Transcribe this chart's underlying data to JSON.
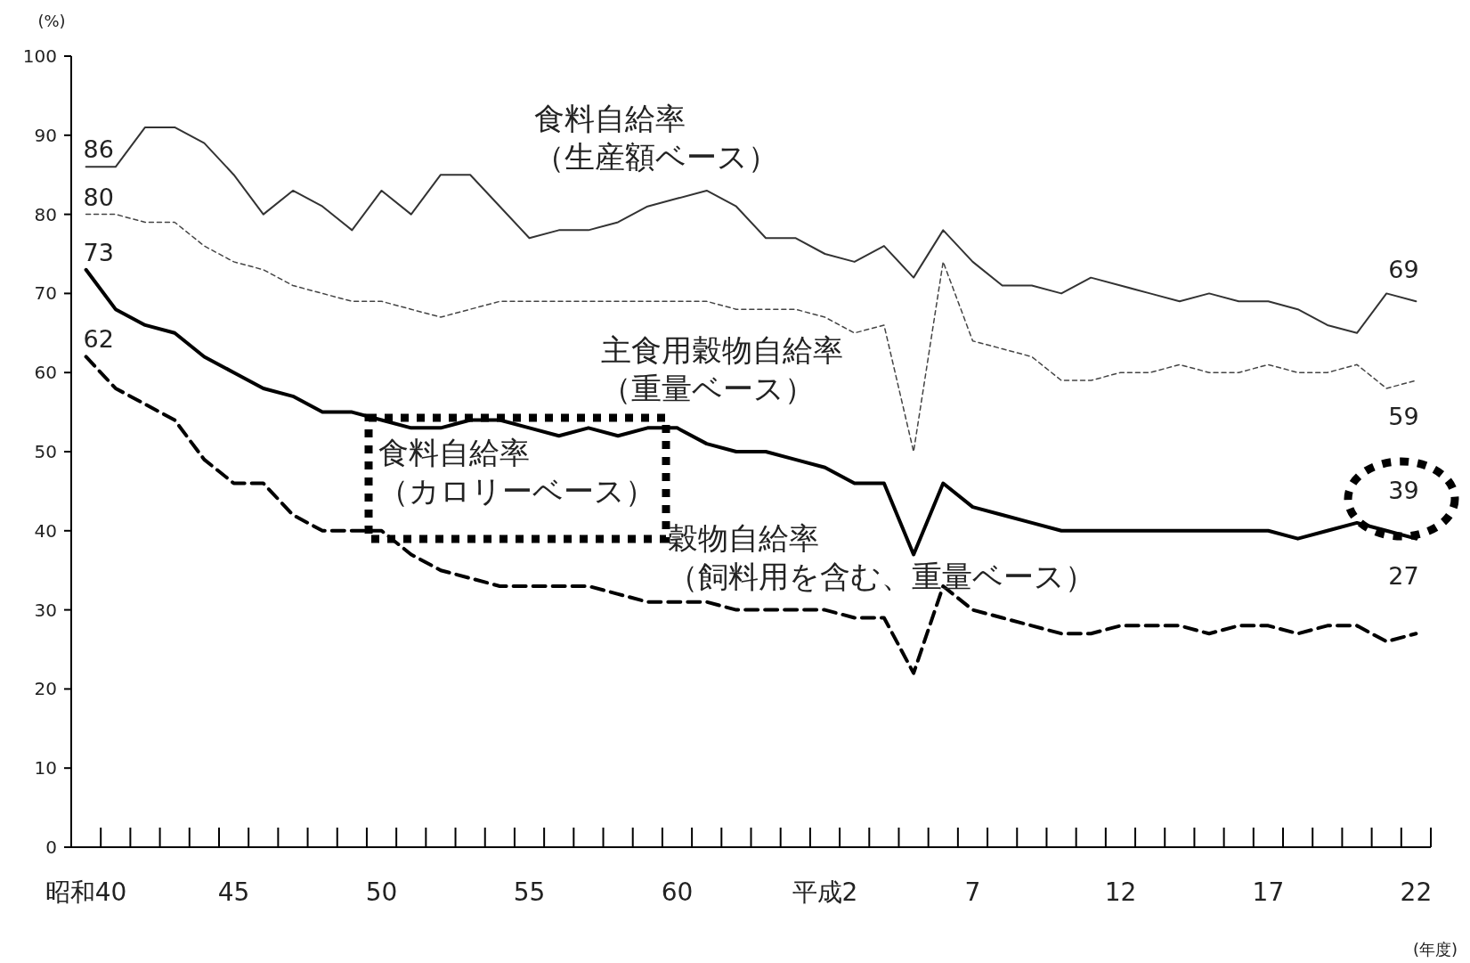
{
  "chart_data": {
    "type": "line",
    "ylabel": "(%)",
    "xlabel": "(年度)",
    "categories": [
      "昭和40",
      null,
      null,
      null,
      null,
      "45",
      null,
      null,
      null,
      null,
      "50",
      null,
      null,
      null,
      null,
      "55",
      null,
      null,
      null,
      null,
      "60",
      null,
      null,
      null,
      null,
      "平成2",
      null,
      null,
      null,
      null,
      "7",
      null,
      null,
      null,
      null,
      "12",
      null,
      null,
      null,
      null,
      "17",
      null,
      null,
      null,
      null,
      "22"
    ],
    "ylim": [
      0,
      100
    ],
    "yticks": [
      0,
      10,
      20,
      30,
      40,
      50,
      60,
      70,
      80,
      90,
      100
    ],
    "grid": false,
    "legend": false,
    "marker": "none",
    "series": [
      {
        "name": "食料自給率（生産額ベース）",
        "color": "#333333",
        "line_style": "solid",
        "values": [
          86,
          86,
          91,
          91,
          89,
          85,
          80,
          83,
          81,
          78,
          83,
          80,
          85,
          85,
          81,
          77,
          78,
          78,
          79,
          81,
          82,
          83,
          81,
          77,
          77,
          75,
          74,
          76,
          72,
          78,
          74,
          71,
          71,
          70,
          72,
          71,
          70,
          69,
          70,
          69,
          69,
          68,
          66,
          65,
          70,
          69
        ],
        "value_labels": [
          "86",
          null,
          null,
          null,
          null,
          null,
          null,
          null,
          null,
          null,
          null,
          null,
          null,
          null,
          null,
          null,
          null,
          null,
          null,
          null,
          null,
          null,
          null,
          null,
          null,
          null,
          null,
          null,
          null,
          null,
          null,
          null,
          null,
          null,
          null,
          null,
          null,
          null,
          null,
          null,
          null,
          null,
          null,
          null,
          null,
          "69"
        ]
      },
      {
        "name": "主食用穀物自給率（重量ベース）",
        "color": "#444444",
        "line_style": "dashed",
        "values": [
          80,
          80,
          79,
          79,
          76,
          74,
          73,
          71,
          70,
          69,
          69,
          68,
          67,
          68,
          69,
          69,
          69,
          69,
          69,
          69,
          69,
          69,
          68,
          68,
          68,
          67,
          65,
          66,
          50,
          74,
          64,
          63,
          62,
          59,
          59,
          60,
          60,
          61,
          60,
          60,
          61,
          60,
          60,
          61,
          58,
          59
        ],
        "value_labels": [
          "80",
          null,
          null,
          null,
          null,
          null,
          null,
          null,
          null,
          null,
          null,
          null,
          null,
          null,
          null,
          null,
          null,
          null,
          null,
          null,
          null,
          null,
          null,
          null,
          null,
          null,
          null,
          null,
          null,
          null,
          null,
          null,
          null,
          null,
          null,
          null,
          null,
          null,
          null,
          null,
          null,
          null,
          null,
          null,
          null,
          "59"
        ]
      },
      {
        "name": "食料自給率（カロリーベース）",
        "color": "#000000",
        "line_style": "solid",
        "values": [
          73,
          68,
          66,
          65,
          62,
          60,
          58,
          57,
          55,
          55,
          54,
          53,
          53,
          54,
          54,
          53,
          52,
          53,
          52,
          53,
          53,
          51,
          50,
          50,
          49,
          48,
          46,
          46,
          37,
          46,
          43,
          42,
          41,
          40,
          40,
          40,
          40,
          40,
          40,
          40,
          40,
          39,
          40,
          41,
          40,
          39
        ],
        "value_labels": [
          "73",
          null,
          null,
          null,
          null,
          null,
          null,
          null,
          null,
          null,
          null,
          null,
          null,
          null,
          null,
          null,
          null,
          null,
          null,
          null,
          null,
          null,
          null,
          null,
          null,
          null,
          null,
          null,
          null,
          null,
          null,
          null,
          null,
          null,
          null,
          null,
          null,
          null,
          null,
          null,
          null,
          null,
          null,
          null,
          null,
          "39"
        ]
      },
      {
        "name": "穀物自給率（飼料用を含む、重量ベース）",
        "color": "#000000",
        "line_style": "dashed",
        "values": [
          62,
          58,
          56,
          54,
          49,
          46,
          46,
          42,
          40,
          40,
          40,
          37,
          35,
          34,
          33,
          33,
          33,
          33,
          32,
          31,
          31,
          31,
          30,
          30,
          30,
          30,
          29,
          29,
          22,
          33,
          30,
          29,
          28,
          27,
          27,
          28,
          28,
          28,
          27,
          28,
          28,
          27,
          28,
          28,
          26,
          27
        ],
        "value_labels": [
          "62",
          null,
          null,
          null,
          null,
          null,
          null,
          null,
          null,
          null,
          null,
          null,
          null,
          null,
          null,
          null,
          null,
          null,
          null,
          null,
          null,
          null,
          null,
          null,
          null,
          null,
          null,
          null,
          null,
          null,
          null,
          null,
          null,
          null,
          null,
          null,
          null,
          null,
          null,
          null,
          null,
          null,
          null,
          null,
          null,
          "27"
        ]
      }
    ]
  }
}
